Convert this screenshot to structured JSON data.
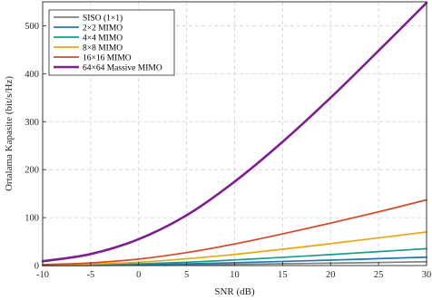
{
  "chart_data": {
    "type": "line",
    "xlabel": "SNR (dB)",
    "ylabel": "Ortalama Kapasite (bit/s/Hz)",
    "xlim": [
      -10,
      30
    ],
    "ylim": [
      0,
      550
    ],
    "xticks": [
      -10,
      -5,
      0,
      5,
      10,
      15,
      20,
      25,
      30
    ],
    "yticks": [
      0,
      100,
      200,
      300,
      400,
      500
    ],
    "grid": true,
    "legend_position": "top-left",
    "x": [
      -10,
      -5,
      0,
      5,
      10,
      15,
      20,
      25,
      30
    ],
    "series": [
      {
        "name": "SISO (1×1)",
        "color": "#808080",
        "values": [
          0.1,
          0.3,
          0.9,
          1.7,
          2.7,
          3.8,
          5.0,
          6.4,
          8.0
        ]
      },
      {
        "name": "2×2 MIMO",
        "color": "#1f77b4",
        "values": [
          0.2,
          0.6,
          1.8,
          3.6,
          6.0,
          8.6,
          11.4,
          14.4,
          17.5
        ]
      },
      {
        "name": "4×4 MIMO",
        "color": "#1a9c8a",
        "values": [
          0.5,
          1.4,
          3.5,
          7.0,
          11.7,
          17.1,
          22.9,
          29.0,
          35.2
        ]
      },
      {
        "name": "8×8 MIMO",
        "color": "#e8a617",
        "values": [
          1.0,
          2.8,
          7.0,
          14.0,
          23.2,
          34.0,
          45.7,
          57.8,
          70.0
        ]
      },
      {
        "name": "16×16 MIMO",
        "color": "#d24b27",
        "values": [
          2.0,
          5.6,
          13.5,
          27.0,
          45.0,
          66.0,
          88.5,
          112.0,
          137.0
        ]
      },
      {
        "name": "64×64 Massive MIMO",
        "color": "#7e1f8e",
        "values": [
          9.0,
          24.0,
          55.0,
          105.0,
          175.0,
          258.0,
          350.0,
          448.0,
          548.0
        ]
      }
    ]
  }
}
